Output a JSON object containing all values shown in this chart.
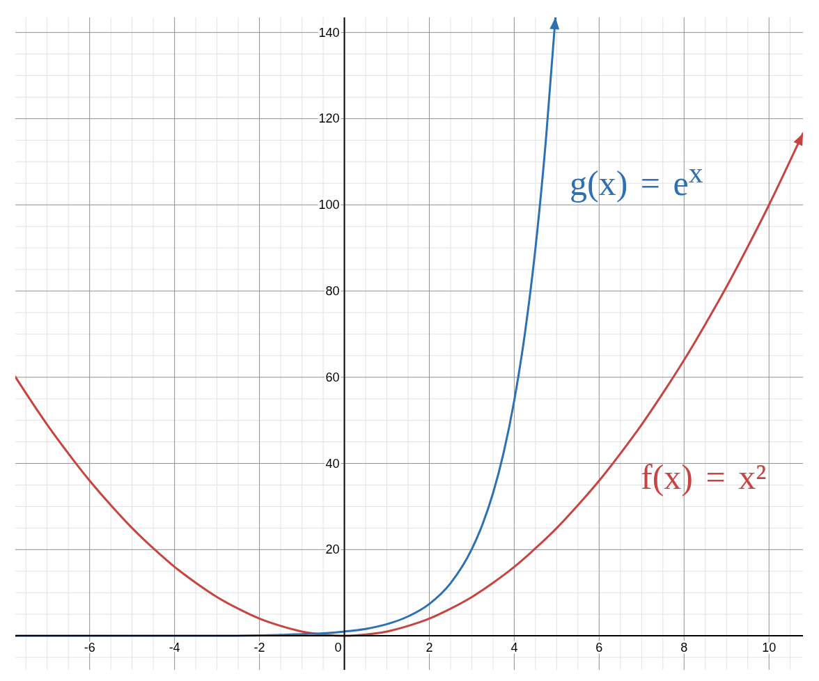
{
  "chart_data": {
    "type": "line",
    "series": [
      {
        "name": "f(x) = x²",
        "color": "#c74440",
        "x": [
          -7.75,
          -7.5,
          -7,
          -6.5,
          -6,
          -5.5,
          -5,
          -4.5,
          -4,
          -3.5,
          -3,
          -2.5,
          -2,
          -1.5,
          -1,
          -0.5,
          0,
          0.5,
          1,
          1.5,
          2,
          2.5,
          3,
          3.5,
          4,
          4.5,
          5,
          5.5,
          6,
          6.5,
          7,
          7.5,
          8,
          8.5,
          9,
          9.5,
          10,
          10.5,
          10.8
        ],
        "values": [
          60.1,
          56.3,
          49,
          42.3,
          36,
          30.3,
          25,
          20.3,
          16,
          12.3,
          9,
          6.3,
          4,
          2.3,
          1,
          0.3,
          0,
          0.3,
          1,
          2.3,
          4,
          6.3,
          9,
          12.3,
          16,
          20.3,
          25,
          30.3,
          36,
          42.3,
          49,
          56.3,
          64,
          72.3,
          81,
          90.3,
          100,
          110.3,
          116.6
        ]
      },
      {
        "name": "g(x) = e$^{x}$",
        "color": "#2d70b3",
        "x": [
          -7.75,
          -6,
          -4,
          -3,
          -2,
          -1.5,
          -1,
          -0.5,
          0,
          0.5,
          1,
          1.5,
          2,
          2.5,
          3,
          3.25,
          3.5,
          3.75,
          4,
          4.25,
          4.5,
          4.75,
          4.97
        ],
        "values": [
          0,
          0,
          0,
          0,
          0.1,
          0.2,
          0.4,
          0.6,
          1,
          1.6,
          2.7,
          4.5,
          7.4,
          12.2,
          20.1,
          25.8,
          33.1,
          42.5,
          54.6,
          70.1,
          90,
          115.6,
          143.5
        ]
      }
    ],
    "xlim": [
      -7.75,
      10.8
    ],
    "ylim": [
      -7.9,
      143.5
    ],
    "xticks": [
      {
        "value": -7.5,
        "label": null
      },
      {
        "value": -7,
        "label": null
      },
      {
        "value": -6.5,
        "label": null
      },
      -6,
      {
        "value": -5.5,
        "label": null
      },
      {
        "value": -5,
        "label": null
      },
      {
        "value": -4.5,
        "label": null
      },
      -4,
      {
        "value": -3.5,
        "label": null
      },
      {
        "value": -3,
        "label": null
      },
      {
        "value": -2.5,
        "label": null
      },
      -2,
      {
        "value": -1.5,
        "label": null
      },
      {
        "value": -1,
        "label": null
      },
      {
        "value": -0.5,
        "label": null
      },
      0,
      {
        "value": 0.5,
        "label": null
      },
      {
        "value": 1,
        "label": null
      },
      {
        "value": 1.5,
        "label": null
      },
      2,
      {
        "value": 2.5,
        "label": null
      },
      {
        "value": 3,
        "label": null
      },
      {
        "value": 3.5,
        "label": null
      },
      4,
      {
        "value": 4.5,
        "label": null
      },
      {
        "value": 5,
        "label": null
      },
      {
        "value": 5.5,
        "label": null
      },
      6,
      {
        "value": 6.5,
        "label": null
      },
      {
        "value": 7,
        "label": null
      },
      {
        "value": 7.5,
        "label": null
      },
      8,
      {
        "value": 8.5,
        "label": null
      },
      {
        "value": 9,
        "label": null
      },
      {
        "value": 9.5,
        "label": null
      },
      10,
      {
        "value": 10.5,
        "label": null
      }
    ],
    "yticks": [
      {
        "value": -5,
        "label": null
      },
      {
        "value": 0,
        "label": null
      },
      {
        "value": 5,
        "label": null
      },
      {
        "value": 10,
        "label": null
      },
      {
        "value": 15,
        "label": null
      },
      20,
      {
        "value": 25,
        "label": null
      },
      {
        "value": 30,
        "label": null
      },
      {
        "value": 35,
        "label": null
      },
      40,
      {
        "value": 45,
        "label": null
      },
      {
        "value": 50,
        "label": null
      },
      {
        "value": 55,
        "label": null
      },
      60,
      {
        "value": 65,
        "label": null
      },
      {
        "value": 70,
        "label": null
      },
      {
        "value": 75,
        "label": null
      },
      80,
      {
        "value": 85,
        "label": null
      },
      {
        "value": 90,
        "label": null
      },
      {
        "value": 95,
        "label": null
      },
      100,
      {
        "value": 105,
        "label": null
      },
      {
        "value": 110,
        "label": null
      },
      {
        "value": 115,
        "label": null
      },
      120,
      {
        "value": 125,
        "label": null
      },
      {
        "value": 130,
        "label": null
      },
      {
        "value": 135,
        "label": null
      },
      140
    ],
    "grid": true,
    "marker": "none"
  }
}
